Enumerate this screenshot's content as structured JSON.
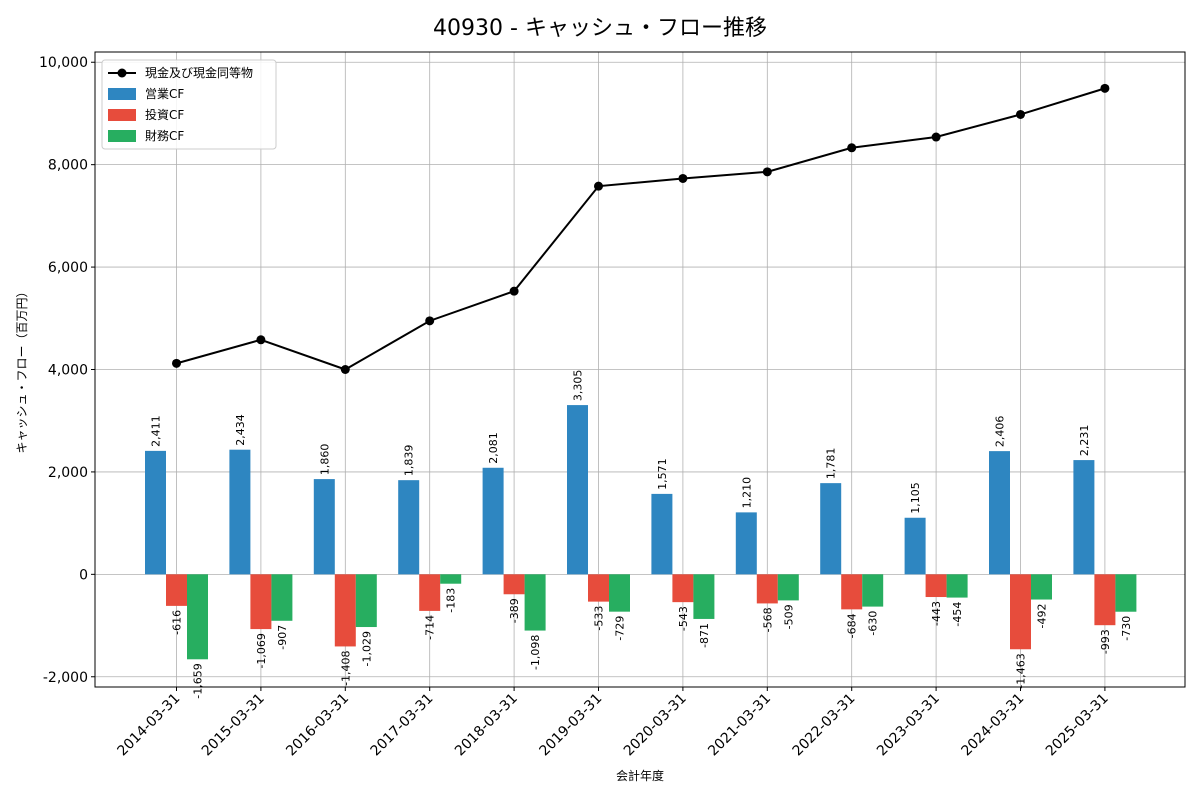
{
  "chart_data": {
    "type": "bar",
    "title": "40930 - キャッシュ・フロー推移",
    "xlabel": "会計年度",
    "ylabel": "キャッシュ・フロー（百万円）",
    "ylim": [
      -2200,
      10200
    ],
    "yticks": [
      -2000,
      0,
      2000,
      4000,
      6000,
      8000,
      10000
    ],
    "ytick_labels": [
      "-2,000",
      "0",
      "2,000",
      "4,000",
      "6,000",
      "8,000",
      "10,000"
    ],
    "grid": true,
    "legend_position": "top-left",
    "categories": [
      "2014-03-31",
      "2015-03-31",
      "2016-03-31",
      "2017-03-31",
      "2018-03-31",
      "2019-03-31",
      "2020-03-31",
      "2021-03-31",
      "2022-03-31",
      "2023-03-31",
      "2024-03-31",
      "2025-03-31"
    ],
    "series": [
      {
        "name": "営業CF",
        "kind": "bar",
        "color": "#2e86c1",
        "values": [
          2411,
          2434,
          1860,
          1839,
          2081,
          3305,
          1571,
          1210,
          1781,
          1105,
          2406,
          2231
        ],
        "labels": [
          "2,411",
          "2,434",
          "1,860",
          "1,839",
          "2,081",
          "3,305",
          "1,571",
          "1,210",
          "1,781",
          "1,105",
          "2,406",
          "2,231"
        ]
      },
      {
        "name": "投資CF",
        "kind": "bar",
        "color": "#e74c3c",
        "values": [
          -616,
          -1069,
          -1408,
          -714,
          -389,
          -533,
          -543,
          -568,
          -684,
          -443,
          -1463,
          -993
        ],
        "labels": [
          "-616",
          "-1,069",
          "-1,408",
          "-714",
          "-389",
          "-533",
          "-543",
          "-568",
          "-684",
          "-443",
          "-1,463",
          "-993"
        ]
      },
      {
        "name": "財務CF",
        "kind": "bar",
        "color": "#27ae60",
        "values": [
          -1659,
          -907,
          -1029,
          -183,
          -1098,
          -729,
          -871,
          -509,
          -630,
          -454,
          -492,
          -730
        ],
        "labels": [
          "-1,659",
          "-907",
          "-1,029",
          "-183",
          "-1,098",
          "-729",
          "-871",
          "-509",
          "-630",
          "-454",
          "-492",
          "-730"
        ]
      },
      {
        "name": "現金及び現金同等物",
        "kind": "line",
        "color": "#000000",
        "values": [
          4120,
          4580,
          4000,
          4950,
          5530,
          7580,
          7730,
          7860,
          8330,
          8540,
          8980,
          9490
        ]
      }
    ]
  }
}
